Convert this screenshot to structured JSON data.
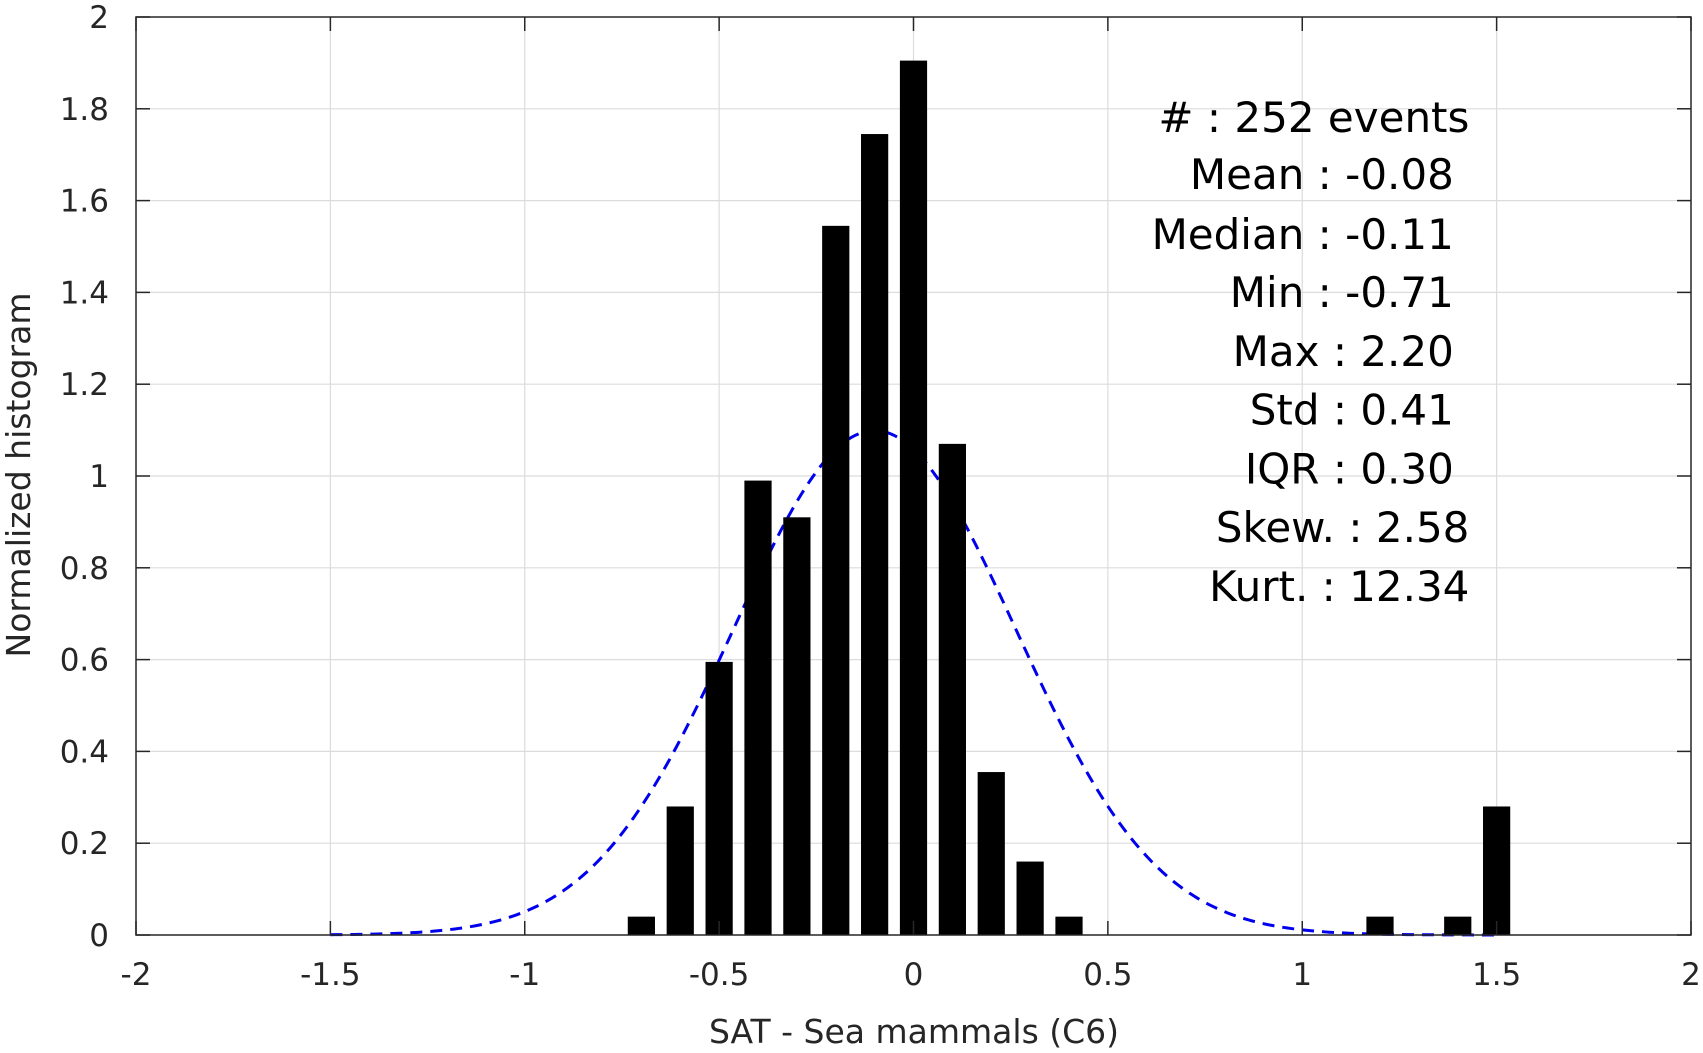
{
  "chart_data": {
    "type": "bar",
    "title": "",
    "xlabel": "SAT - Sea mammals  (C6)",
    "ylabel": "Normalized histogram",
    "xlim": [
      -2,
      2
    ],
    "ylim": [
      0,
      2
    ],
    "grid": true,
    "x_ticks": [
      -2,
      -1.5,
      -1,
      -0.5,
      0,
      0.5,
      1,
      1.5,
      2
    ],
    "x_tick_labels": [
      "-2",
      "-1.5",
      "-1",
      "-0.5",
      "0",
      "0.5",
      "1",
      "1.5",
      "2"
    ],
    "y_ticks": [
      0,
      0.2,
      0.4,
      0.6,
      0.8,
      1,
      1.2,
      1.4,
      1.6,
      1.8,
      2
    ],
    "y_tick_labels": [
      "0",
      "0.2",
      "0.4",
      "0.6",
      "0.8",
      "1",
      "1.2",
      "1.4",
      "1.6",
      "1.8",
      "2"
    ],
    "bar_width": 0.07,
    "bars": [
      {
        "x": -0.7,
        "value": 0.04
      },
      {
        "x": -0.6,
        "value": 0.28
      },
      {
        "x": -0.5,
        "value": 0.595
      },
      {
        "x": -0.4,
        "value": 0.99
      },
      {
        "x": -0.3,
        "value": 0.91
      },
      {
        "x": -0.2,
        "value": 1.545
      },
      {
        "x": -0.1,
        "value": 1.745
      },
      {
        "x": 0.0,
        "value": 1.905
      },
      {
        "x": 0.1,
        "value": 1.07
      },
      {
        "x": 0.2,
        "value": 0.355
      },
      {
        "x": 0.3,
        "value": 0.16
      },
      {
        "x": 0.4,
        "value": 0.04
      },
      {
        "x": 1.2,
        "value": 0.04
      },
      {
        "x": 1.4,
        "value": 0.04
      },
      {
        "x": 1.5,
        "value": 0.28
      }
    ],
    "bar_color": "#000000",
    "fit_curve": {
      "type": "normal",
      "mean": -0.1,
      "std": 0.363,
      "x_range": [
        -1.5,
        1.5
      ],
      "color": "#0000ee",
      "style": "dashed"
    },
    "stats": [
      {
        "label": "#  : 252 events",
        "anchor": "end",
        "x_data": 1.43
      },
      {
        "label": "Mean : -0.08",
        "anchor": "end",
        "x_data": 1.39
      },
      {
        "label": "Median : -0.11",
        "anchor": "end",
        "x_data": 1.39
      },
      {
        "label": "Min : -0.71",
        "anchor": "end",
        "x_data": 1.39
      },
      {
        "label": "Max : 2.20",
        "anchor": "end",
        "x_data": 1.39
      },
      {
        "label": "Std : 0.41",
        "anchor": "end",
        "x_data": 1.39
      },
      {
        "label": "IQR : 0.30",
        "anchor": "end",
        "x_data": 1.39
      },
      {
        "label": "Skew. : 2.58",
        "anchor": "end",
        "x_data": 1.43
      },
      {
        "label": "Kurt. : 12.34",
        "anchor": "end",
        "x_data": 1.43
      }
    ],
    "stats_y_data": [
      1.75,
      1.625,
      1.495,
      1.368,
      1.24,
      1.112,
      0.984,
      0.856,
      0.728
    ]
  }
}
